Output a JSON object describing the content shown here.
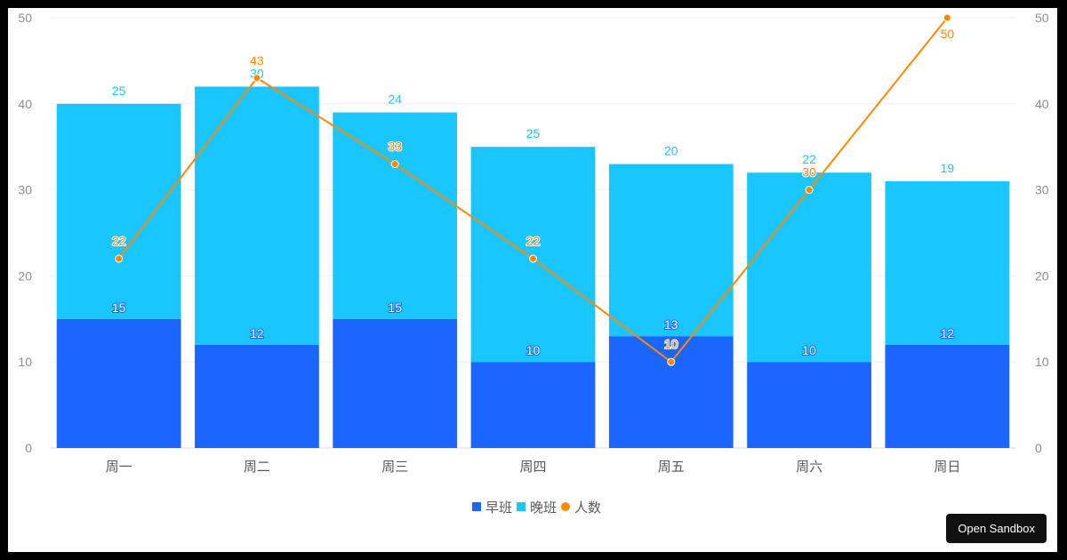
{
  "chart_data": {
    "type": "bar",
    "stacked": true,
    "categories": [
      "周一",
      "周二",
      "周三",
      "周四",
      "周五",
      "周六",
      "周日"
    ],
    "series": [
      {
        "name": "早班",
        "type": "bar",
        "color": "#1a66ff",
        "values": [
          15,
          12,
          15,
          10,
          13,
          10,
          12
        ]
      },
      {
        "name": "晚班",
        "type": "bar",
        "color": "#1ac6ff",
        "values": [
          25,
          30,
          24,
          25,
          20,
          22,
          19
        ]
      },
      {
        "name": "人数",
        "type": "line",
        "color": "#ff8800",
        "values": [
          22,
          43,
          33,
          22,
          10,
          30,
          50
        ]
      }
    ],
    "ylim": [
      0,
      50
    ],
    "yticks": [
      0,
      10,
      20,
      30,
      40,
      50
    ],
    "y2ticks": [
      0,
      10,
      20,
      30,
      40,
      50
    ],
    "grid": true,
    "legend_position": "bottom"
  },
  "sandbox_button": {
    "label": "Open Sandbox"
  }
}
